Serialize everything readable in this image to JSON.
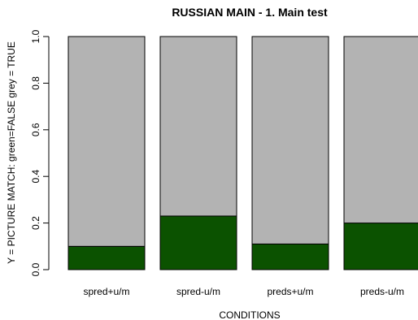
{
  "chart_data": {
    "type": "bar",
    "title": "RUSSIAN MAIN  -  1. Main test",
    "xlabel": "CONDITIONS",
    "ylabel": "Y = PICTURE MATCH: green=FALSE grey = TRUE",
    "ylim": [
      0,
      1
    ],
    "yticks": [
      "0.0",
      "0.2",
      "0.4",
      "0.6",
      "0.8",
      "1.0"
    ],
    "grid": false,
    "stacked": true,
    "categories": [
      "spred+u/m",
      "spred-u/m",
      "preds+u/m",
      "preds-u/m"
    ],
    "series": [
      {
        "name": "FALSE",
        "color": "#0b5200",
        "values": [
          0.1,
          0.23,
          0.11,
          0.2
        ]
      },
      {
        "name": "TRUE",
        "color": "#b3b3b3",
        "values": [
          0.9,
          0.77,
          0.89,
          0.8
        ]
      }
    ]
  }
}
